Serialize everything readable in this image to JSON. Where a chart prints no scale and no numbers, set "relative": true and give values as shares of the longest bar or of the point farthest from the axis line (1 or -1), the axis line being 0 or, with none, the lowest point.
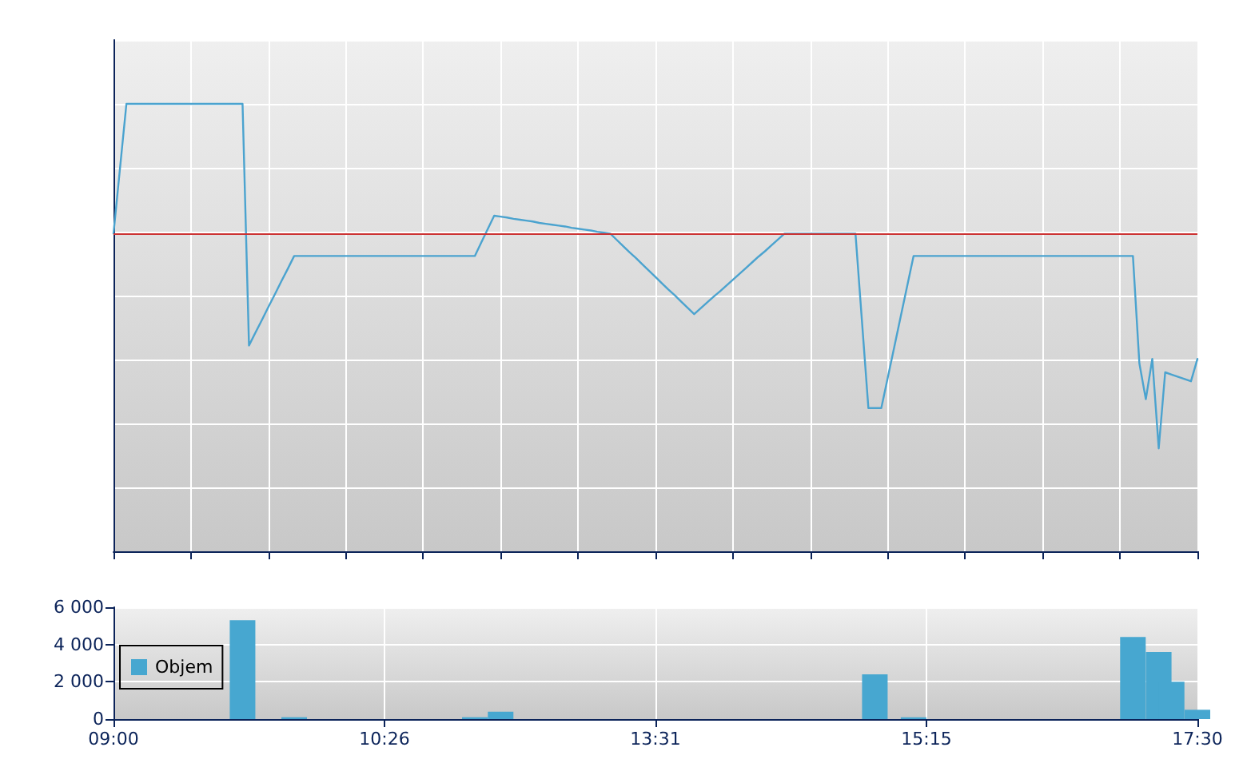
{
  "chart_data": [
    {
      "type": "line",
      "relative": true,
      "color": "#4ba3cf",
      "marker": "none",
      "line_style": "solid",
      "categories": [
        null,
        null,
        null,
        null,
        null,
        null,
        null,
        null,
        null,
        null,
        null,
        null,
        null,
        null,
        null,
        null,
        null,
        null,
        null,
        null,
        null,
        null,
        null,
        null,
        null,
        null,
        null,
        null,
        null,
        null,
        null,
        null,
        null,
        null,
        null,
        null,
        null,
        null,
        null,
        null,
        null,
        null,
        null,
        null,
        null,
        null,
        null,
        null,
        null,
        null,
        null,
        null,
        null,
        null,
        null,
        null,
        null,
        null,
        null,
        null,
        null,
        null,
        null,
        null,
        null,
        null,
        null,
        null,
        null,
        null,
        null,
        null,
        null,
        null,
        null,
        null,
        null,
        null,
        null,
        null,
        null,
        null,
        null,
        null,
        null,
        null,
        null,
        null,
        null,
        null,
        null,
        null,
        null,
        null,
        null,
        null,
        null,
        null,
        null,
        null,
        null,
        null,
        null,
        null,
        null,
        null,
        null,
        null,
        null,
        null,
        null,
        null,
        null,
        null,
        null,
        null,
        null,
        null,
        null,
        null,
        null,
        null,
        null,
        null,
        null,
        null,
        null,
        null,
        null,
        null,
        null,
        null,
        null,
        null,
        null,
        null,
        null,
        null,
        null,
        null,
        null,
        null,
        null,
        null,
        null,
        null,
        null,
        null,
        null,
        null,
        null,
        null,
        null,
        null,
        null,
        null,
        null,
        null,
        null,
        null,
        null,
        null,
        null,
        null,
        null,
        null,
        null,
        null,
        null
      ],
      "values": [
        0.71,
        0.855,
        1,
        1,
        1,
        1,
        1,
        1,
        1,
        1,
        1,
        1,
        1,
        1,
        1,
        1,
        1,
        1,
        1,
        1,
        1,
        0.46,
        0.489,
        0.517,
        0.546,
        0.574,
        0.603,
        0.631,
        0.66,
        0.66,
        0.66,
        0.66,
        0.66,
        0.66,
        0.66,
        0.66,
        0.66,
        0.66,
        0.66,
        0.66,
        0.66,
        0.66,
        0.66,
        0.66,
        0.66,
        0.66,
        0.66,
        0.66,
        0.66,
        0.66,
        0.66,
        0.66,
        0.66,
        0.66,
        0.66,
        0.66,
        0.66,
        0.69,
        0.72,
        0.75,
        0.748,
        0.746,
        0.743,
        0.741,
        0.739,
        0.737,
        0.734,
        0.732,
        0.73,
        0.728,
        0.726,
        0.723,
        0.721,
        0.719,
        0.717,
        0.714,
        0.712,
        0.71,
        0.696,
        0.682,
        0.668,
        0.655,
        0.641,
        0.627,
        0.613,
        0.599,
        0.585,
        0.572,
        0.558,
        0.544,
        0.53,
        0.543,
        0.556,
        0.569,
        0.581,
        0.594,
        0.607,
        0.62,
        0.633,
        0.646,
        0.659,
        0.671,
        0.684,
        0.697,
        0.71,
        0.71,
        0.71,
        0.71,
        0.71,
        0.71,
        0.71,
        0.71,
        0.71,
        0.71,
        0.71,
        0.71,
        0.515,
        0.32,
        0.32,
        0.32,
        0.388,
        0.456,
        0.524,
        0.592,
        0.66,
        0.66,
        0.66,
        0.66,
        0.66,
        0.66,
        0.66,
        0.66,
        0.66,
        0.66,
        0.66,
        0.66,
        0.66,
        0.66,
        0.66,
        0.66,
        0.66,
        0.66,
        0.66,
        0.66,
        0.66,
        0.66,
        0.66,
        0.66,
        0.66,
        0.66,
        0.66,
        0.66,
        0.66,
        0.66,
        0.66,
        0.66,
        0.66,
        0.66,
        0.66,
        0.42,
        0.34,
        0.43,
        0.23,
        0.4,
        0.395,
        0.39,
        0.385,
        0.38,
        0.43
      ],
      "grid": true,
      "ref_lines": [
        {
          "axis": "y",
          "value": 0.71,
          "color": "#cc3333"
        }
      ]
    },
    {
      "type": "bar",
      "categories": [
        "09:00",
        null,
        null,
        null,
        null,
        null,
        null,
        null,
        null,
        null,
        null,
        null,
        null,
        null,
        null,
        null,
        null,
        null,
        null,
        null,
        null,
        "10:26",
        null,
        null,
        null,
        null,
        null,
        null,
        null,
        null,
        null,
        null,
        null,
        null,
        null,
        null,
        null,
        null,
        null,
        null,
        null,
        null,
        "13:31",
        null,
        null,
        null,
        null,
        null,
        null,
        null,
        null,
        null,
        null,
        null,
        null,
        null,
        null,
        null,
        null,
        null,
        null,
        null,
        null,
        "15:15",
        null,
        null,
        null,
        null,
        null,
        null,
        null,
        null,
        null,
        null,
        null,
        null,
        null,
        null,
        null,
        null,
        null,
        null,
        null,
        null,
        "17:30"
      ],
      "series": [
        {
          "name": "Objem",
          "color": "#47a7d0",
          "values": [
            null,
            null,
            null,
            null,
            null,
            null,
            null,
            null,
            null,
            null,
            5300,
            null,
            null,
            null,
            100,
            null,
            null,
            null,
            null,
            null,
            null,
            null,
            null,
            null,
            null,
            null,
            null,
            null,
            100,
            null,
            400,
            null,
            null,
            null,
            null,
            null,
            null,
            null,
            null,
            null,
            null,
            null,
            null,
            null,
            null,
            null,
            null,
            null,
            null,
            null,
            null,
            null,
            null,
            null,
            null,
            null,
            null,
            null,
            null,
            2400,
            null,
            null,
            100,
            null,
            null,
            null,
            null,
            null,
            null,
            null,
            null,
            null,
            null,
            null,
            null,
            null,
            null,
            null,
            null,
            4400,
            null,
            3600,
            2000,
            null,
            500
          ]
        }
      ],
      "ylim": [
        0,
        6000
      ],
      "yticks": [
        0,
        {
          "value": 2000,
          "label": "2 000"
        },
        {
          "value": 4000,
          "label": "4 000"
        },
        {
          "value": 6000,
          "label": "6 000"
        }
      ],
      "grid": true,
      "legend": "left"
    }
  ]
}
